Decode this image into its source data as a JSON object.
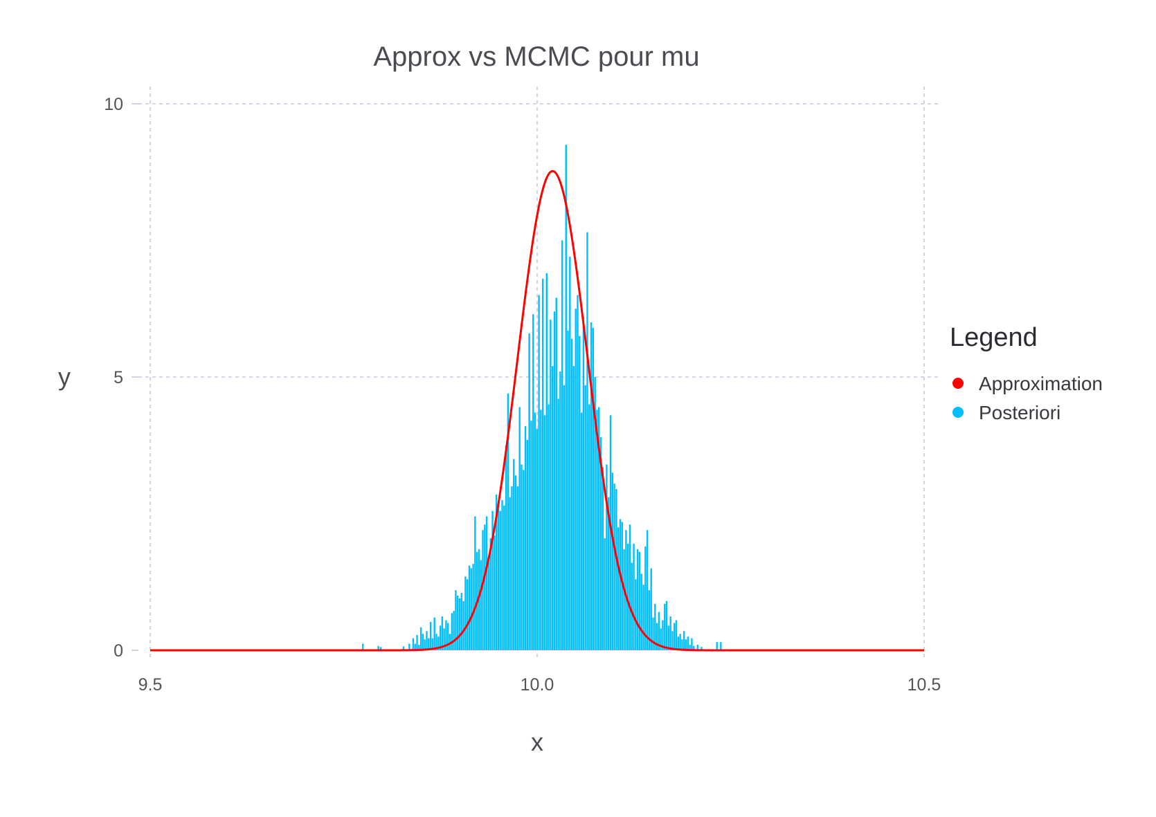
{
  "chart_data": {
    "type": "bar",
    "title": "Approx vs MCMC pour mu",
    "xlabel": "x",
    "ylabel": "y",
    "xlim": [
      9.5,
      10.5
    ],
    "ylim": [
      0,
      10
    ],
    "xticks": [
      "9.5",
      "10.0",
      "10.5"
    ],
    "yticks": [
      "0",
      "5",
      "10"
    ],
    "grid": true,
    "legend": {
      "title": "Legend",
      "placement": "right",
      "entries": [
        {
          "label": "Approximation",
          "color": "#ff0000"
        },
        {
          "label": "Posteriori",
          "color": "#00bfff"
        }
      ]
    },
    "series": [
      {
        "name": "Posteriori",
        "type": "histogram",
        "color": "#00bfff",
        "bin_width": 0.0025,
        "bins": [
          [
            9.775,
            0.12
          ],
          [
            9.795,
            0.08
          ],
          [
            9.798,
            0.06
          ],
          [
            9.8275,
            0.07
          ],
          [
            9.835,
            0.12
          ],
          [
            9.84,
            0.22
          ],
          [
            9.8425,
            0.12
          ],
          [
            9.845,
            0.28
          ],
          [
            9.8475,
            0.1
          ],
          [
            9.85,
            0.42
          ],
          [
            9.8525,
            0.3
          ],
          [
            9.855,
            0.2
          ],
          [
            9.8575,
            0.35
          ],
          [
            9.86,
            0.22
          ],
          [
            9.8625,
            0.52
          ],
          [
            9.865,
            0.22
          ],
          [
            9.8675,
            0.6
          ],
          [
            9.87,
            0.3
          ],
          [
            9.8725,
            0.25
          ],
          [
            9.875,
            0.45
          ],
          [
            9.8775,
            0.62
          ],
          [
            9.88,
            0.4
          ],
          [
            9.8825,
            0.55
          ],
          [
            9.885,
            0.5
          ],
          [
            9.8875,
            0.3
          ],
          [
            9.89,
            0.68
          ],
          [
            9.8925,
            0.72
          ],
          [
            9.895,
            1.1
          ],
          [
            9.8975,
            1.0
          ],
          [
            9.9,
            0.95
          ],
          [
            9.9025,
            1.05
          ],
          [
            9.905,
            0.9
          ],
          [
            9.9075,
            1.35
          ],
          [
            9.91,
            1.3
          ],
          [
            9.9125,
            1.55
          ],
          [
            9.915,
            1.5
          ],
          [
            9.9175,
            1.58
          ],
          [
            9.92,
            2.45
          ],
          [
            9.9225,
            1.8
          ],
          [
            9.925,
            1.85
          ],
          [
            9.9275,
            1.65
          ],
          [
            9.93,
            2.2
          ],
          [
            9.9325,
            2.3
          ],
          [
            9.935,
            2.45
          ],
          [
            9.9375,
            1.65
          ],
          [
            9.94,
            2.05
          ],
          [
            9.9425,
            2.55
          ],
          [
            9.945,
            2.1
          ],
          [
            9.9475,
            2.85
          ],
          [
            9.95,
            2.6
          ],
          [
            9.9525,
            2.55
          ],
          [
            9.955,
            2.75
          ],
          [
            9.9575,
            2.65
          ],
          [
            9.96,
            3.75
          ],
          [
            9.9625,
            4.7
          ],
          [
            9.965,
            2.8
          ],
          [
            9.9675,
            3.0
          ],
          [
            9.97,
            3.5
          ],
          [
            9.9725,
            3.2
          ],
          [
            9.975,
            3.0
          ],
          [
            9.9775,
            4.45
          ],
          [
            9.98,
            3.4
          ],
          [
            9.9825,
            3.3
          ],
          [
            9.985,
            4.1
          ],
          [
            9.9875,
            3.85
          ],
          [
            9.99,
            5.8
          ],
          [
            9.9925,
            4.2
          ],
          [
            9.995,
            6.15
          ],
          [
            9.9975,
            4.35
          ],
          [
            10.0,
            4.05
          ],
          [
            10.0025,
            6.5
          ],
          [
            10.005,
            4.4
          ],
          [
            10.0075,
            6.8
          ],
          [
            10.01,
            4.3
          ],
          [
            10.0125,
            6.9
          ],
          [
            10.015,
            4.5
          ],
          [
            10.0175,
            6.05
          ],
          [
            10.02,
            5.2
          ],
          [
            10.0225,
            6.2
          ],
          [
            10.025,
            6.45
          ],
          [
            10.0275,
            4.6
          ],
          [
            10.03,
            5.1
          ],
          [
            10.0325,
            7.5
          ],
          [
            10.035,
            4.85
          ],
          [
            10.0375,
            9.25
          ],
          [
            10.04,
            5.85
          ],
          [
            10.0425,
            7.2
          ],
          [
            10.045,
            5.7
          ],
          [
            10.0475,
            5.2
          ],
          [
            10.05,
            6.25
          ],
          [
            10.0525,
            6.5
          ],
          [
            10.055,
            5.75
          ],
          [
            10.0575,
            4.35
          ],
          [
            10.06,
            6.1
          ],
          [
            10.0625,
            4.85
          ],
          [
            10.065,
            7.65
          ],
          [
            10.0675,
            4.5
          ],
          [
            10.07,
            6.0
          ],
          [
            10.0725,
            5.9
          ],
          [
            10.075,
            5.0
          ],
          [
            10.0775,
            4.4
          ],
          [
            10.08,
            4.45
          ],
          [
            10.0825,
            3.9
          ],
          [
            10.085,
            3.35
          ],
          [
            10.0875,
            2.05
          ],
          [
            10.09,
            3.4
          ],
          [
            10.0925,
            2.8
          ],
          [
            10.095,
            4.3
          ],
          [
            10.0975,
            3.25
          ],
          [
            10.1,
            3.05
          ],
          [
            10.1025,
            2.95
          ],
          [
            10.105,
            2.25
          ],
          [
            10.1075,
            2.4
          ],
          [
            10.11,
            2.35
          ],
          [
            10.1125,
            1.85
          ],
          [
            10.115,
            2.2
          ],
          [
            10.1175,
            1.95
          ],
          [
            10.12,
            2.3
          ],
          [
            10.1225,
            1.6
          ],
          [
            10.125,
            1.95
          ],
          [
            10.1275,
            1.3
          ],
          [
            10.13,
            1.85
          ],
          [
            10.1325,
            1.8
          ],
          [
            10.135,
            1.4
          ],
          [
            10.1375,
            1.2
          ],
          [
            10.14,
            1.9
          ],
          [
            10.1425,
            2.2
          ],
          [
            10.145,
            1.1
          ],
          [
            10.1475,
            1.5
          ],
          [
            10.15,
            0.6
          ],
          [
            10.1525,
            0.85
          ],
          [
            10.155,
            0.5
          ],
          [
            10.1575,
            0.7
          ],
          [
            10.16,
            0.4
          ],
          [
            10.1625,
            0.55
          ],
          [
            10.165,
            0.85
          ],
          [
            10.1675,
            0.9
          ],
          [
            10.17,
            0.45
          ],
          [
            10.1725,
            0.62
          ],
          [
            10.175,
            0.35
          ],
          [
            10.1775,
            0.5
          ],
          [
            10.18,
            0.55
          ],
          [
            10.1825,
            0.25
          ],
          [
            10.185,
            0.3
          ],
          [
            10.1875,
            0.2
          ],
          [
            10.19,
            0.35
          ],
          [
            10.1925,
            0.2
          ],
          [
            10.195,
            0.25
          ],
          [
            10.1975,
            0.1
          ],
          [
            10.2,
            0.22
          ],
          [
            10.2025,
            0.08
          ],
          [
            10.2075,
            0.1
          ],
          [
            10.2125,
            0.06
          ],
          [
            10.2325,
            0.15
          ],
          [
            10.2375,
            0.15
          ]
        ]
      },
      {
        "name": "Approximation",
        "type": "line",
        "color": "#ff0000",
        "distribution": "normal",
        "mean": 10.02,
        "sd": 0.0455
      }
    ]
  }
}
